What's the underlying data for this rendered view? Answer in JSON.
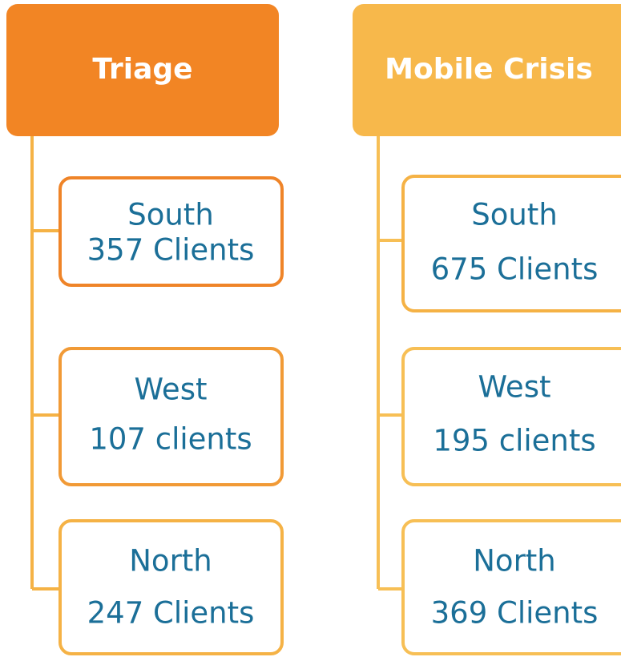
{
  "groups": [
    {
      "title": "Triage",
      "items": [
        {
          "name": "South",
          "count": "357 Clients"
        },
        {
          "name": "West",
          "count": "107 clients"
        },
        {
          "name": "North",
          "count": "247 Clients"
        }
      ]
    },
    {
      "title": "Mobile Crisis",
      "items": [
        {
          "name": "South",
          "count": "675 Clients"
        },
        {
          "name": "West",
          "count": "195 clients"
        },
        {
          "name": "North",
          "count": "369 Clients"
        }
      ]
    }
  ]
}
